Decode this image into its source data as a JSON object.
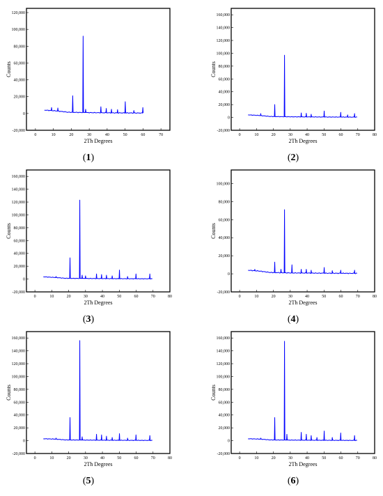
{
  "chart_data": [
    {
      "type": "line",
      "caption": "1",
      "color": "#0000ff",
      "xlabel": "2Th Degrees",
      "ylabel": "Counts",
      "xlim": [
        -5,
        75
      ],
      "ylim": [
        -20000,
        125000
      ],
      "xticks": [
        0,
        10,
        20,
        30,
        40,
        50,
        60,
        70
      ],
      "yticks": [
        -20000,
        0,
        20000,
        40000,
        60000,
        80000,
        100000,
        120000
      ],
      "ytick_labels": [
        "-20,000",
        "0",
        "20,000",
        "40,000",
        "60,000",
        "80,000",
        "100,000",
        "120,000"
      ],
      "x_range": [
        5,
        60
      ],
      "baseline": [
        [
          5,
          4000
        ],
        [
          12,
          3000
        ],
        [
          18,
          1500
        ],
        [
          30,
          1000
        ],
        [
          45,
          700
        ],
        [
          60,
          500
        ]
      ],
      "peaks": [
        [
          9,
          7000
        ],
        [
          12.5,
          6500
        ],
        [
          20.8,
          21000
        ],
        [
          26.6,
          92000
        ],
        [
          28,
          5000
        ],
        [
          36.5,
          8000
        ],
        [
          39.5,
          6000
        ],
        [
          42.4,
          5000
        ],
        [
          45.8,
          4500
        ],
        [
          50.1,
          14000
        ],
        [
          54.9,
          3500
        ],
        [
          59.9,
          7000
        ]
      ]
    },
    {
      "type": "line",
      "caption": "2",
      "color": "#0000ff",
      "xlabel": "2Th Degrees",
      "ylabel": "Counts",
      "xlim": [
        -5,
        80
      ],
      "ylim": [
        -20000,
        170000
      ],
      "xticks": [
        0,
        10,
        20,
        30,
        40,
        50,
        60,
        70,
        80
      ],
      "yticks": [
        -20000,
        0,
        20000,
        40000,
        60000,
        80000,
        100000,
        120000,
        140000,
        160000
      ],
      "ytick_labels": [
        "-20,000",
        "0",
        "20,000",
        "40,000",
        "60,000",
        "80,000",
        "100,000",
        "120,000",
        "140,000",
        "160,000"
      ],
      "x_range": [
        5,
        70
      ],
      "baseline": [
        [
          5,
          4000
        ],
        [
          12,
          3000
        ],
        [
          18,
          1500
        ],
        [
          30,
          1000
        ],
        [
          50,
          700
        ],
        [
          70,
          500
        ]
      ],
      "peaks": [
        [
          12.5,
          6000
        ],
        [
          20.8,
          20000
        ],
        [
          26.6,
          97000
        ],
        [
          36.5,
          7000
        ],
        [
          39.5,
          6500
        ],
        [
          42.4,
          5000
        ],
        [
          50.1,
          10000
        ],
        [
          59.9,
          8000
        ],
        [
          64,
          4000
        ],
        [
          68.1,
          6000
        ]
      ]
    },
    {
      "type": "line",
      "caption": "3",
      "color": "#0000ff",
      "xlabel": "2Th Degrees",
      "ylabel": "Counts",
      "xlim": [
        -5,
        80
      ],
      "ylim": [
        -20000,
        170000
      ],
      "xticks": [
        0,
        10,
        20,
        30,
        40,
        50,
        60,
        70,
        80
      ],
      "yticks": [
        -20000,
        0,
        20000,
        40000,
        60000,
        80000,
        100000,
        120000,
        140000,
        160000
      ],
      "ytick_labels": [
        "-20,000",
        "0",
        "20,000",
        "40,000",
        "60,000",
        "80,000",
        "100,000",
        "120,000",
        "140,000",
        "160,000"
      ],
      "x_range": [
        5,
        70
      ],
      "baseline": [
        [
          5,
          3500
        ],
        [
          12,
          2500
        ],
        [
          18,
          1200
        ],
        [
          30,
          900
        ],
        [
          50,
          600
        ],
        [
          70,
          400
        ]
      ],
      "peaks": [
        [
          12.5,
          4000
        ],
        [
          20.8,
          33000
        ],
        [
          26.6,
          123000
        ],
        [
          28,
          6000
        ],
        [
          30,
          5000
        ],
        [
          36.5,
          8000
        ],
        [
          39.5,
          7000
        ],
        [
          42.4,
          6000
        ],
        [
          45.8,
          5000
        ],
        [
          50.1,
          14000
        ],
        [
          54.9,
          4000
        ],
        [
          59.9,
          8000
        ],
        [
          68.1,
          8000
        ]
      ]
    },
    {
      "type": "line",
      "caption": "4",
      "color": "#0000ff",
      "xlabel": "2Th Degrees",
      "ylabel": "Counts",
      "xlim": [
        -5,
        80
      ],
      "ylim": [
        -20000,
        115000
      ],
      "xticks": [
        0,
        10,
        20,
        30,
        40,
        50,
        60,
        70,
        80
      ],
      "yticks": [
        -20000,
        0,
        20000,
        40000,
        60000,
        80000,
        100000
      ],
      "ytick_labels": [
        "-20,000",
        "0",
        "20,000",
        "40,000",
        "60,000",
        "80,000",
        "100,000"
      ],
      "x_range": [
        5,
        70
      ],
      "baseline": [
        [
          5,
          4000
        ],
        [
          12,
          3000
        ],
        [
          18,
          1500
        ],
        [
          30,
          1000
        ],
        [
          50,
          700
        ],
        [
          70,
          500
        ]
      ],
      "peaks": [
        [
          9,
          5000
        ],
        [
          20.8,
          13000
        ],
        [
          24.5,
          5000
        ],
        [
          26.6,
          71000
        ],
        [
          31,
          10000
        ],
        [
          36.5,
          5000
        ],
        [
          39.5,
          5000
        ],
        [
          42.4,
          4000
        ],
        [
          50.1,
          7000
        ],
        [
          54.9,
          3500
        ],
        [
          59.9,
          4000
        ],
        [
          68.1,
          4000
        ]
      ]
    },
    {
      "type": "line",
      "caption": "5",
      "color": "#0000ff",
      "xlabel": "2Th Degrees",
      "ylabel": "Counts",
      "xlim": [
        -5,
        80
      ],
      "ylim": [
        -20000,
        170000
      ],
      "xticks": [
        0,
        10,
        20,
        30,
        40,
        50,
        60,
        70,
        80
      ],
      "yticks": [
        -20000,
        0,
        20000,
        40000,
        60000,
        80000,
        100000,
        120000,
        140000,
        160000
      ],
      "ytick_labels": [
        "-20,000",
        "0",
        "20,000",
        "40,000",
        "60,000",
        "80,000",
        "100,000",
        "120,000",
        "140,000",
        "160,000"
      ],
      "x_range": [
        5,
        70
      ],
      "baseline": [
        [
          5,
          3000
        ],
        [
          12,
          2500
        ],
        [
          18,
          1200
        ],
        [
          30,
          900
        ],
        [
          50,
          600
        ],
        [
          70,
          400
        ]
      ],
      "peaks": [
        [
          12.5,
          4000
        ],
        [
          20.8,
          36000
        ],
        [
          26.6,
          156000
        ],
        [
          28,
          6000
        ],
        [
          36.5,
          10000
        ],
        [
          39.5,
          9000
        ],
        [
          42.4,
          7000
        ],
        [
          45.8,
          5000
        ],
        [
          50.1,
          11000
        ],
        [
          54.9,
          4000
        ],
        [
          59.9,
          9000
        ],
        [
          68.1,
          8000
        ]
      ]
    },
    {
      "type": "line",
      "caption": "6",
      "color": "#0000ff",
      "xlabel": "2Th Degrees",
      "ylabel": "Counts",
      "xlim": [
        -5,
        80
      ],
      "ylim": [
        -20000,
        170000
      ],
      "xticks": [
        0,
        10,
        20,
        30,
        40,
        50,
        60,
        70,
        80
      ],
      "yticks": [
        -20000,
        0,
        20000,
        40000,
        60000,
        80000,
        100000,
        120000,
        140000,
        160000
      ],
      "ytick_labels": [
        "-20,000",
        "0",
        "20,000",
        "40,000",
        "60,000",
        "80,000",
        "100,000",
        "120,000",
        "140,000",
        "160,000"
      ],
      "x_range": [
        5,
        70
      ],
      "baseline": [
        [
          5,
          3000
        ],
        [
          12,
          2500
        ],
        [
          18,
          1200
        ],
        [
          30,
          900
        ],
        [
          50,
          600
        ],
        [
          70,
          400
        ]
      ],
      "peaks": [
        [
          12.5,
          4000
        ],
        [
          20.8,
          36000
        ],
        [
          26.6,
          155000
        ],
        [
          28,
          10000
        ],
        [
          36.5,
          13000
        ],
        [
          39.5,
          10000
        ],
        [
          42.4,
          8000
        ],
        [
          45.8,
          5000
        ],
        [
          50.1,
          15000
        ],
        [
          54.9,
          5000
        ],
        [
          59.9,
          12000
        ],
        [
          68.1,
          8000
        ]
      ]
    }
  ]
}
